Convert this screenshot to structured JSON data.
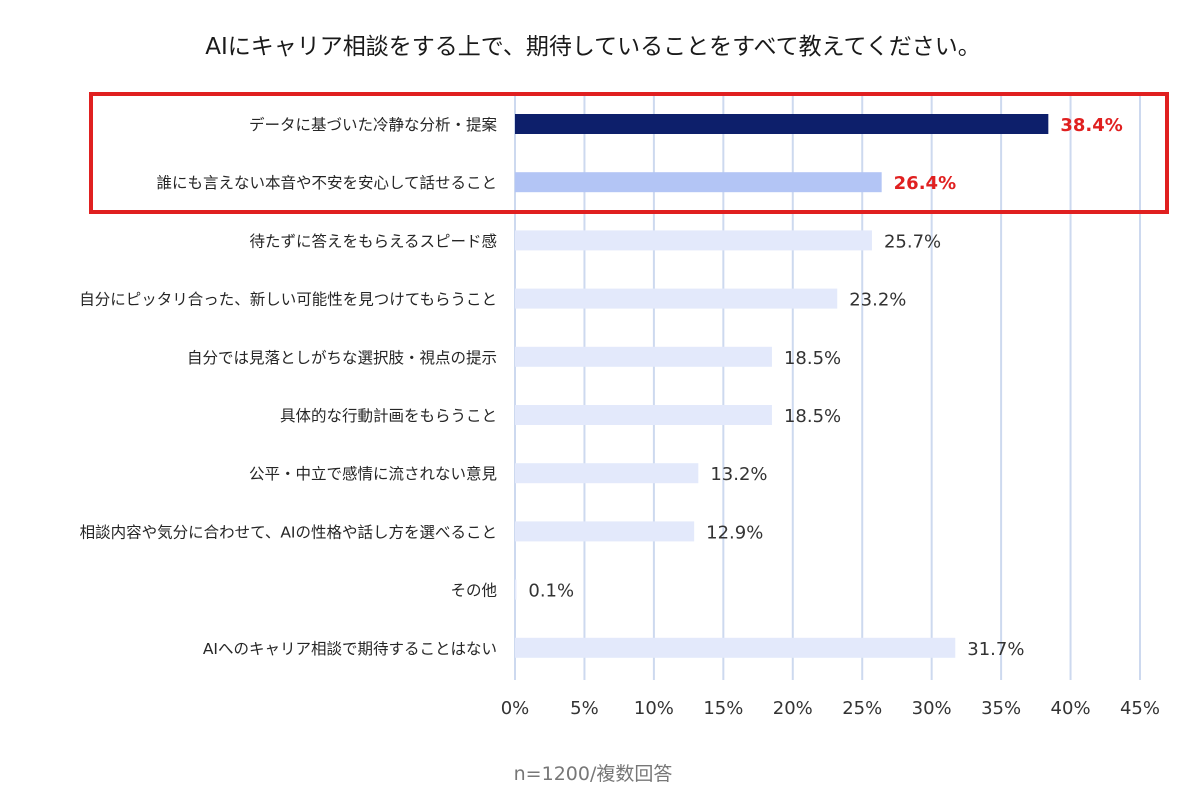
{
  "chart_data": {
    "type": "bar",
    "orientation": "horizontal",
    "title": "AIにキャリア相談をする上で、期待していることをすべて教えてください。",
    "categories": [
      "データに基づいた冷静な分析・提案",
      "誰にも言えない本音や不安を安心して話せること",
      "待たずに答えをもらえるスピード感",
      "自分にピッタリ合った、新しい可能性を見つけてもらうこと",
      "自分では見落としがちな選択肢・視点の提示",
      "具体的な行動計画をもらうこと",
      "公平・中立で感情に流されない意見",
      "相談内容や気分に合わせて、AIの性格や話し方を選べること",
      "その他",
      "AIへのキャリア相談で期待することはない"
    ],
    "values": [
      38.4,
      26.4,
      25.7,
      23.2,
      18.5,
      18.5,
      13.2,
      12.9,
      0.1,
      31.7
    ],
    "value_labels": [
      "38.4%",
      "26.4%",
      "25.7%",
      "23.2%",
      "18.5%",
      "18.5%",
      "13.2%",
      "12.9%",
      "0.1%",
      "31.7%"
    ],
    "highlighted": [
      0,
      1
    ],
    "xlim": [
      0,
      45
    ],
    "xticks": [
      "0%",
      "5%",
      "10%",
      "15%",
      "20%",
      "25%",
      "30%",
      "35%",
      "40%",
      "45%"
    ],
    "grid": true,
    "note": "n=1200/複数回答",
    "colors": {
      "bar_top1": "#0d1f6b",
      "bar_top2": "#b3c5f5",
      "bar_other": "#e3e9fb",
      "grid": "#cdd9ef",
      "highlight_box": "#e02020",
      "highlight_text": "#e02020"
    }
  }
}
